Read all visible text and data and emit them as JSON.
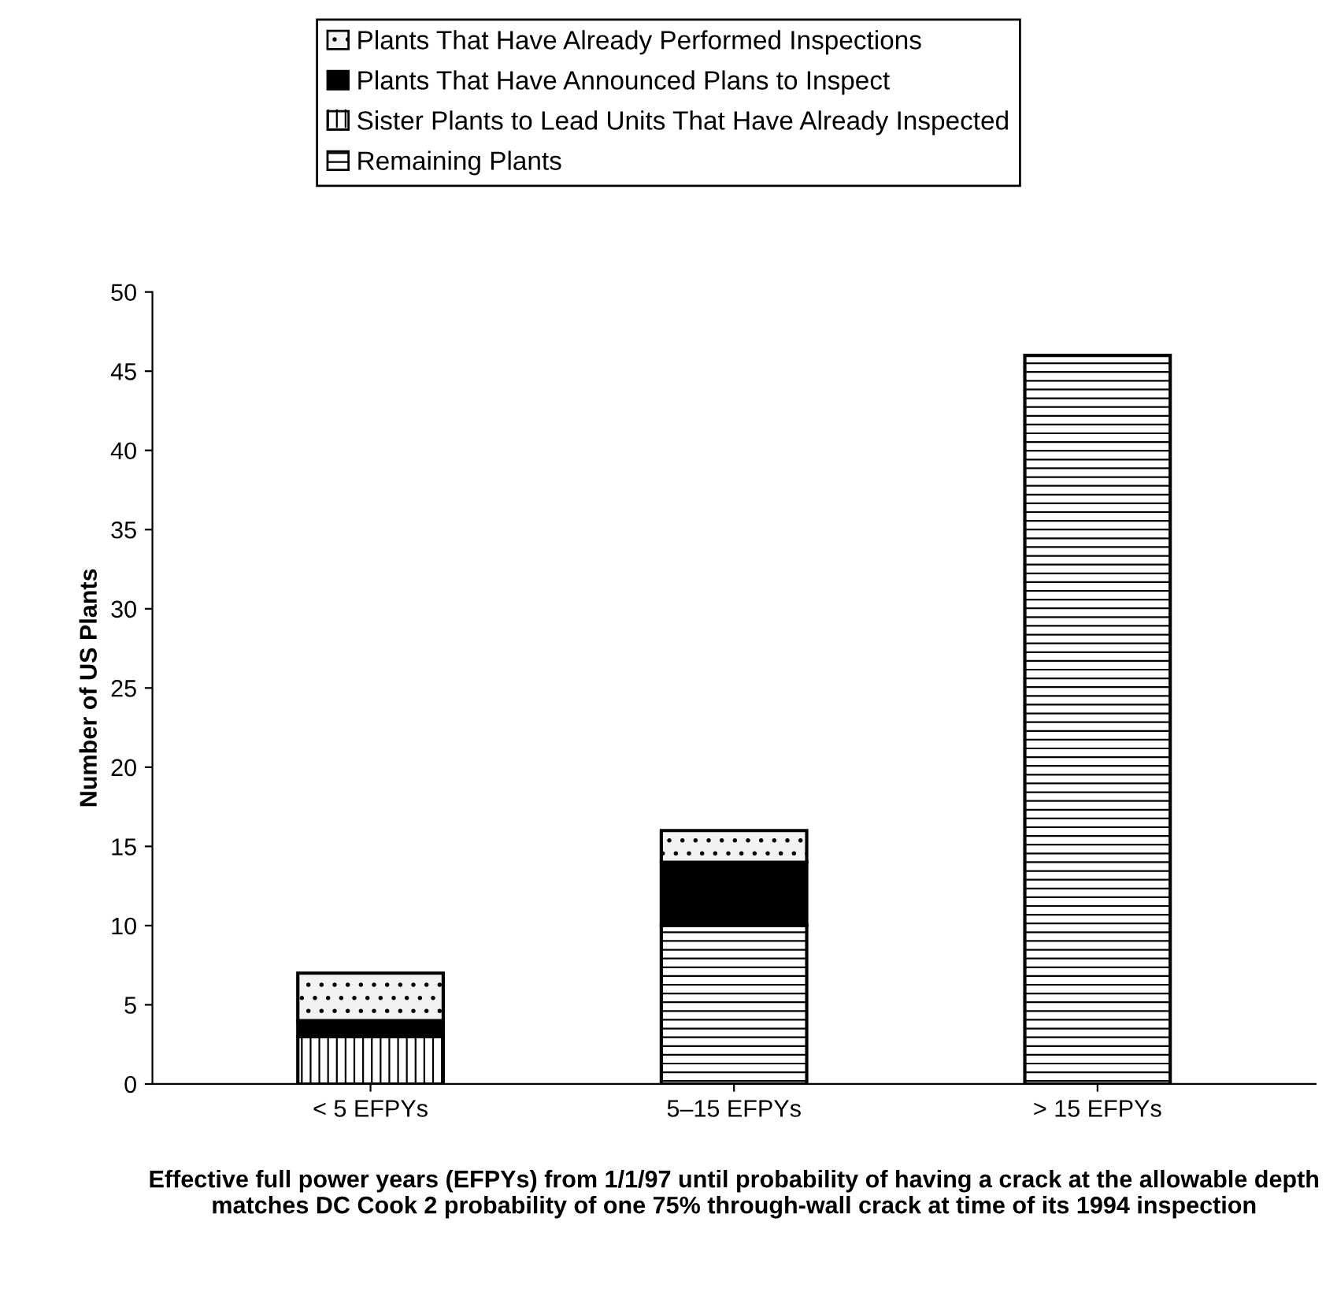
{
  "chart_data": {
    "type": "bar",
    "stacked": true,
    "categories": [
      "< 5 EFPYs",
      "5–15 EFPYs",
      "> 15 EFPYs"
    ],
    "series": [
      {
        "name": "Remaining Plants",
        "color": "#ffffff",
        "values": [
          0,
          10,
          46
        ]
      },
      {
        "name": "Sister Plants to Lead Units That Have Already Inspected",
        "color": "#ffffff",
        "values": [
          3,
          0,
          0
        ]
      },
      {
        "name": "Plants That Have Announced Plans to Inspect",
        "color": "#000000",
        "values": [
          1,
          4,
          0
        ]
      },
      {
        "name": "Plants That Have Already Performed Inspections",
        "color": "#f2f2f2",
        "values": [
          3,
          2,
          0
        ]
      }
    ],
    "ylabel": "Number of US Plants",
    "xlabel": "Effective full power years (EFPYs) from 1/1/97 until probability of having a crack at the allowable depth matches DC Cook 2 probability of one 75% through-wall crack at time of its 1994 inspection",
    "ylim": [
      0,
      50
    ],
    "yticks": [
      0,
      5,
      10,
      15,
      20,
      25,
      30,
      35,
      40,
      45,
      50
    ],
    "grid": false,
    "legend": "top"
  }
}
